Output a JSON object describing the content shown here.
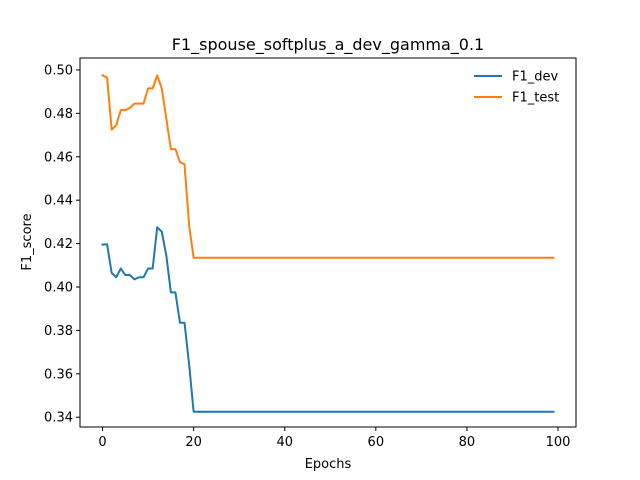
{
  "chart_data": {
    "type": "line",
    "title": "F1_spouse_softplus_a_dev_gamma_0.1",
    "xlabel": "Epochs",
    "ylabel": "F1_score",
    "xlim": [
      -4.95,
      103.95
    ],
    "ylim": [
      0.3355,
      0.5055
    ],
    "xticks": [
      0,
      20,
      40,
      60,
      80,
      100
    ],
    "yticks": [
      0.34,
      0.36,
      0.38,
      0.4,
      0.42,
      0.44,
      0.46,
      0.48,
      0.5
    ],
    "ytick_labels": [
      "0.34",
      "0.36",
      "0.38",
      "0.40",
      "0.42",
      "0.44",
      "0.46",
      "0.48",
      "0.50"
    ],
    "legend": "top-right",
    "grid": false,
    "series": [
      {
        "name": "F1_dev",
        "color": "#1f77b4",
        "x": [
          0,
          1,
          2,
          3,
          4,
          5,
          6,
          7,
          8,
          9,
          10,
          11,
          12,
          13,
          14,
          15,
          16,
          17,
          18,
          19,
          20,
          99
        ],
        "y": [
          0.4195,
          0.4197,
          0.4065,
          0.4045,
          0.4085,
          0.4055,
          0.4055,
          0.4035,
          0.4045,
          0.4045,
          0.4085,
          0.4085,
          0.4275,
          0.4255,
          0.4145,
          0.3975,
          0.3975,
          0.3835,
          0.3835,
          0.3645,
          0.3425,
          0.3425
        ]
      },
      {
        "name": "F1_test",
        "color": "#ff7f0e",
        "x": [
          0,
          1,
          2,
          3,
          4,
          5,
          6,
          7,
          8,
          9,
          10,
          11,
          12,
          13,
          14,
          15,
          16,
          17,
          18,
          19,
          20,
          99
        ],
        "y": [
          0.4975,
          0.4965,
          0.4725,
          0.4745,
          0.4815,
          0.4815,
          0.4825,
          0.4845,
          0.4845,
          0.4845,
          0.4915,
          0.4915,
          0.4975,
          0.4915,
          0.4775,
          0.4635,
          0.4635,
          0.4575,
          0.4565,
          0.4285,
          0.4135,
          0.4135
        ]
      }
    ]
  }
}
